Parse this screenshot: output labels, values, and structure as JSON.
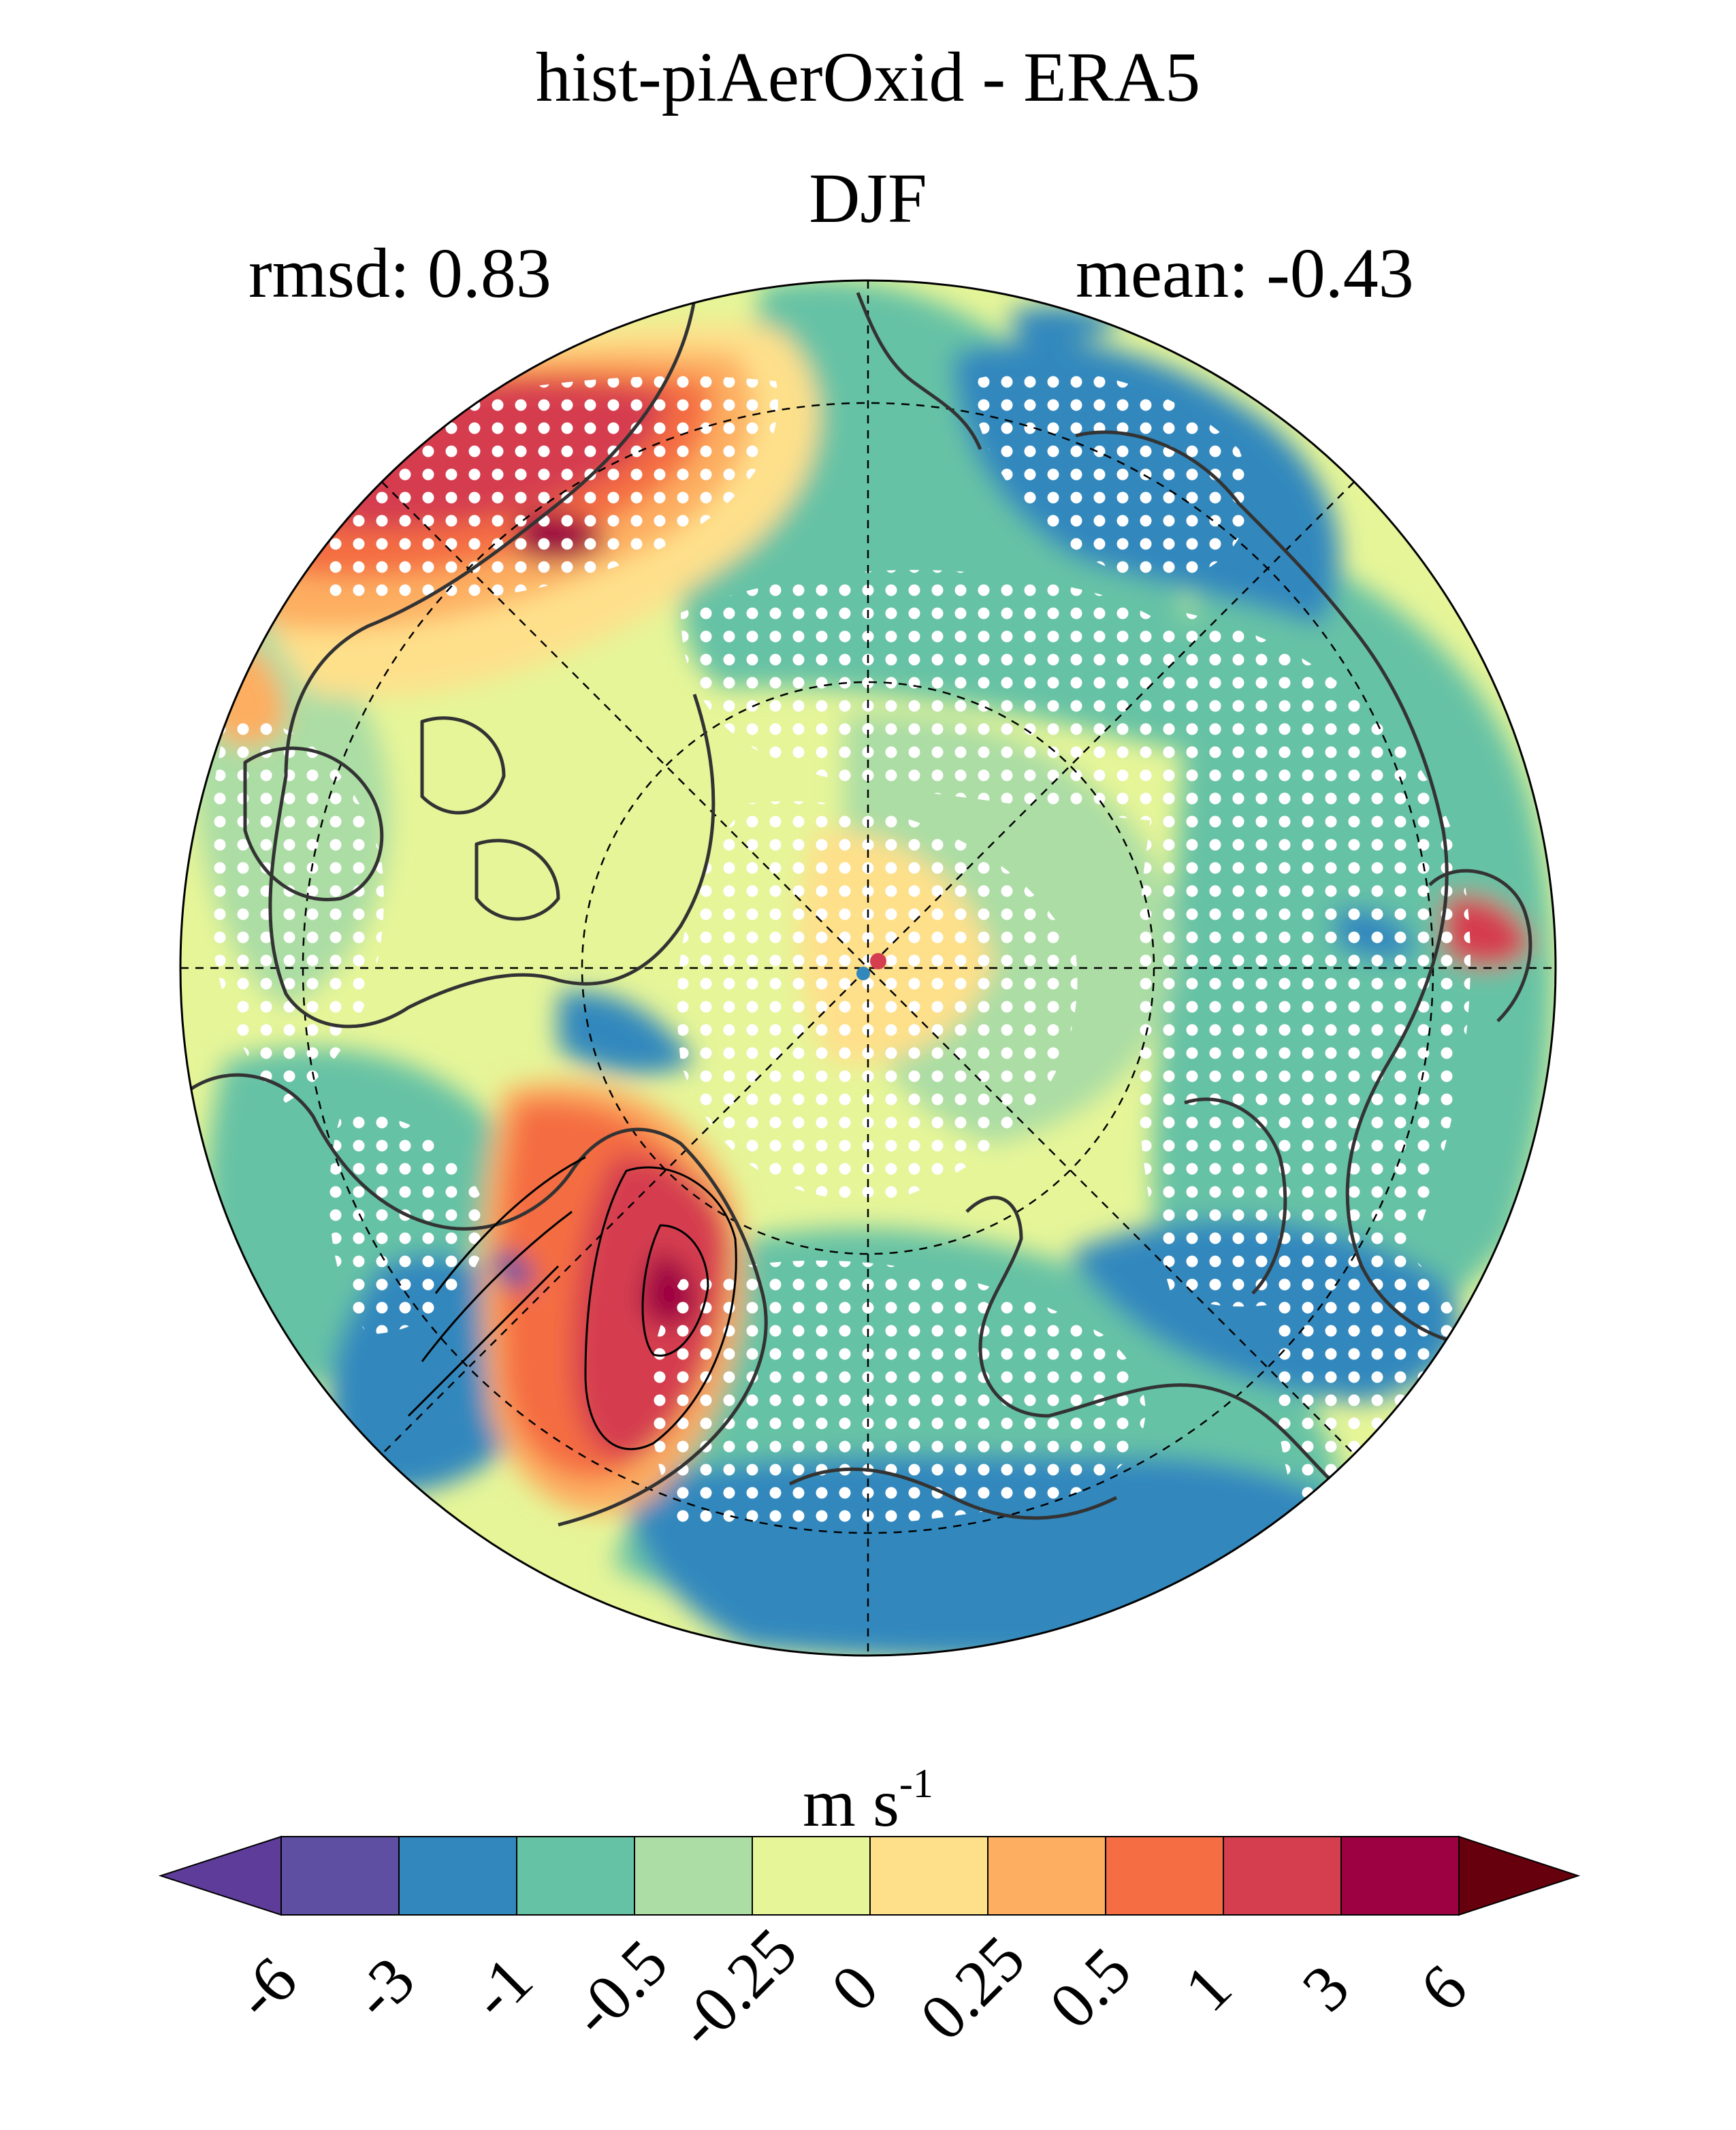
{
  "title": "hist-piAerOxid - ERA5",
  "season": "DJF",
  "stats": {
    "rmsd": "rmsd: 0.83",
    "mean": "mean: -0.43"
  },
  "colorbar": {
    "units_base": "m s",
    "units_exp": "-1",
    "ticks": [
      "-6",
      "-3",
      "-1",
      "-0.5",
      "-0.25",
      "0",
      "0.25",
      "0.5",
      "1",
      "3",
      "6"
    ],
    "colors": [
      "#5e4fa2",
      "#3288bd",
      "#66c2a5",
      "#abdda4",
      "#e6f598",
      "#fee08b",
      "#fdae61",
      "#f46d43",
      "#d53e4f",
      "#9e0142"
    ],
    "under_color": "#5e3c99",
    "over_color": "#67000d"
  },
  "palette": {
    "neutral": "#e6f598",
    "light_green": "#abdda4",
    "green": "#66c2a5",
    "blue": "#3288bd",
    "yellow": "#fee08b",
    "orange": "#fdae61",
    "red_orange": "#f46d43",
    "red": "#d53e4f",
    "dark_red": "#9e0142",
    "purple": "#5e4fa2",
    "coast": "#333333",
    "stipple": "#ffffff"
  }
}
